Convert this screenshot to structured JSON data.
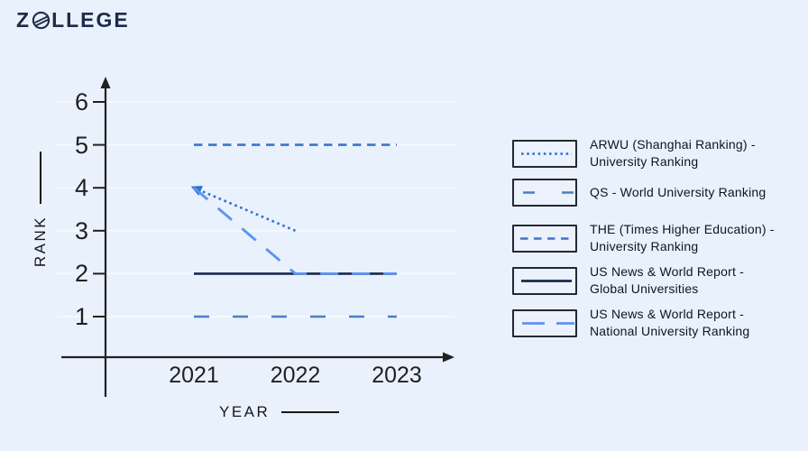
{
  "page": {
    "background": "#e9f1fc"
  },
  "logo": {
    "prefix": "Z",
    "suffix": "LLEGE"
  },
  "chart_data": {
    "type": "line",
    "title": "",
    "xlabel": "YEAR",
    "ylabel": "RANK",
    "x": [
      2021,
      2022,
      2023
    ],
    "yticks": [
      1,
      2,
      3,
      4,
      5,
      6
    ],
    "ylim": [
      0,
      6.5
    ],
    "grid": true,
    "grid_color": "#f6fafe",
    "axis_color": "#212121",
    "legend_position": "right",
    "series": [
      {
        "name": "ARWU (Shanghai Ranking) -\nUniversity Ranking",
        "x": [
          2021,
          2022
        ],
        "values": [
          4,
          3
        ],
        "style": "dotted",
        "color": "#2c70d2",
        "arrow_at_start": true
      },
      {
        "name": "QS - World University Ranking",
        "x": [
          2021,
          2022,
          2023
        ],
        "values": [
          1,
          1,
          1
        ],
        "style": "long-dash",
        "color": "#4c7fc4",
        "arrow_at_start": false
      },
      {
        "name": "THE (Times Higher Education) -\nUniversity Ranking",
        "x": [
          2021,
          2022,
          2023
        ],
        "values": [
          5,
          5,
          5
        ],
        "style": "medium-dash",
        "color": "#3b76c9",
        "arrow_at_start": false
      },
      {
        "name": "US News & World Report -\nGlobal Universities",
        "x": [
          2021,
          2022,
          2023
        ],
        "values": [
          2,
          2,
          2
        ],
        "style": "solid",
        "color": "#18294e",
        "arrow_at_start": false
      },
      {
        "name": "US News & World Report -\nNational University Ranking",
        "x": [
          2021,
          2022,
          2023
        ],
        "values": [
          4,
          2,
          2
        ],
        "style": "long-dash-light",
        "color": "#5f93ef",
        "arrow_at_start": false
      }
    ]
  }
}
